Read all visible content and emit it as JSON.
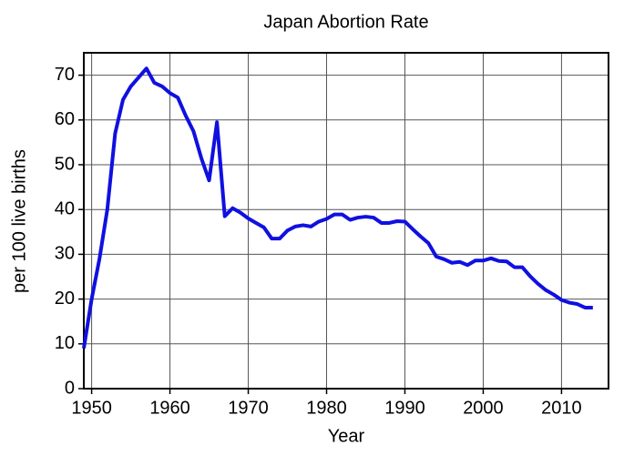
{
  "chart_data": {
    "type": "line",
    "title": "Japan Abortion Rate",
    "xlabel": "Year",
    "ylabel": "per 100 live births",
    "x": [
      1949,
      1950,
      1951,
      1952,
      1953,
      1954,
      1955,
      1956,
      1957,
      1958,
      1959,
      1960,
      1961,
      1962,
      1963,
      1964,
      1965,
      1966,
      1967,
      1968,
      1969,
      1970,
      1971,
      1972,
      1973,
      1974,
      1975,
      1976,
      1977,
      1978,
      1979,
      1980,
      1981,
      1982,
      1983,
      1984,
      1985,
      1986,
      1987,
      1988,
      1989,
      1990,
      1991,
      1992,
      1993,
      1994,
      1995,
      1996,
      1997,
      1998,
      1999,
      2000,
      2001,
      2002,
      2003,
      2004,
      2005,
      2006,
      2007,
      2008,
      2009,
      2010,
      2011,
      2012,
      2013,
      2014
    ],
    "series": [
      {
        "name": "Abortion rate",
        "color": "#1010e0",
        "values": [
          9,
          20,
          29,
          40,
          57,
          64.5,
          67.5,
          69.5,
          71.5,
          68.3,
          67.5,
          66,
          65,
          61,
          57.5,
          51.5,
          46.5,
          59.5,
          38.5,
          40.3,
          39.3,
          38,
          37,
          36,
          33.5,
          33.5,
          35.3,
          36.2,
          36.5,
          36.2,
          37.3,
          37.9,
          38.9,
          38.9,
          37.7,
          38.2,
          38.4,
          38.2,
          37,
          37,
          37.4,
          37.3,
          35.6,
          34,
          32.5,
          29.5,
          28.9,
          28.1,
          28.3,
          27.6,
          28.6,
          28.6,
          29.1,
          28.5,
          28.4,
          27.1,
          27.1,
          25.1,
          23.4,
          22,
          21,
          19.8,
          19.2,
          18.9,
          18.1,
          18.1
        ]
      }
    ],
    "xlim": [
      1949,
      2016
    ],
    "xticks": [
      1950,
      1960,
      1970,
      1980,
      1990,
      2000,
      2010
    ],
    "ylim": [
      0,
      75
    ],
    "yticks": [
      0,
      10,
      20,
      30,
      40,
      50,
      60,
      70
    ],
    "grid": true
  }
}
